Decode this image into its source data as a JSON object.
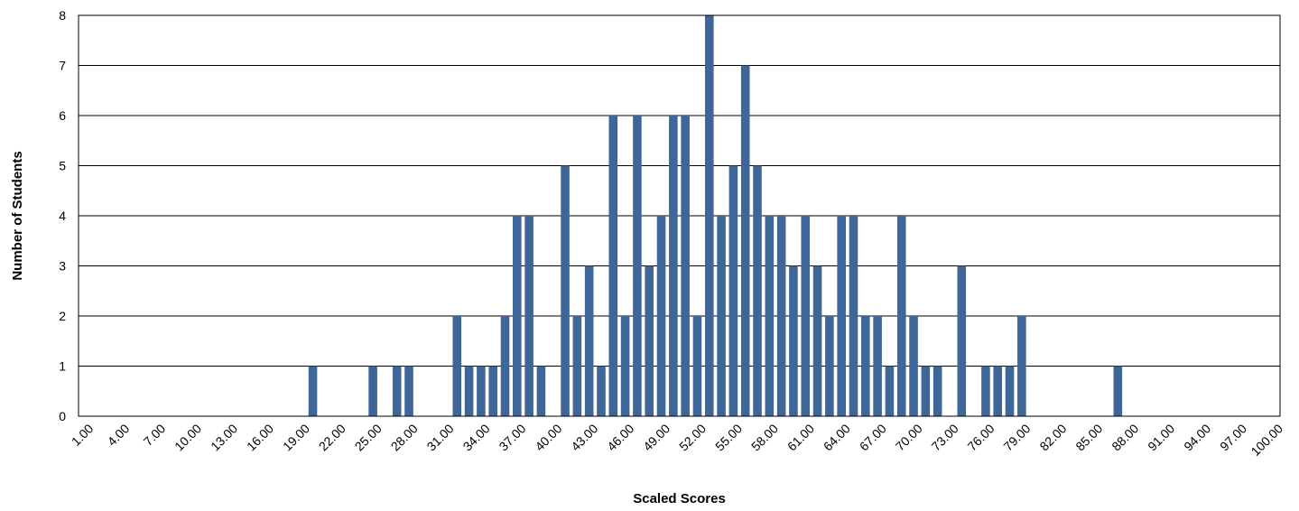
{
  "chart_data": {
    "type": "bar",
    "title": "",
    "xlabel": "Scaled Scores",
    "ylabel": "Number of Students",
    "ylim": [
      0,
      8
    ],
    "yticks": [
      "0",
      "1",
      "2",
      "3",
      "4",
      "5",
      "6",
      "7",
      "8"
    ],
    "xtick_labels": [
      "1.00",
      "4.00",
      "7.00",
      "10.00",
      "13.00",
      "16.00",
      "19.00",
      "22.00",
      "25.00",
      "28.00",
      "31.00",
      "34.00",
      "37.00",
      "40.00",
      "43.00",
      "46.00",
      "49.00",
      "52.00",
      "55.00",
      "58.00",
      "61.00",
      "64.00",
      "67.00",
      "70.00",
      "73.00",
      "76.00",
      "79.00",
      "82.00",
      "85.00",
      "88.00",
      "91.00",
      "94.00",
      "97.00",
      "100.00"
    ],
    "x": [
      1,
      2,
      3,
      4,
      5,
      6,
      7,
      8,
      9,
      10,
      11,
      12,
      13,
      14,
      15,
      16,
      17,
      18,
      19,
      20,
      21,
      22,
      23,
      24,
      25,
      26,
      27,
      28,
      29,
      30,
      31,
      32,
      33,
      34,
      35,
      36,
      37,
      38,
      39,
      40,
      41,
      42,
      43,
      44,
      45,
      46,
      47,
      48,
      49,
      50,
      51,
      52,
      53,
      54,
      55,
      56,
      57,
      58,
      59,
      60,
      61,
      62,
      63,
      64,
      65,
      66,
      67,
      68,
      69,
      70,
      71,
      72,
      73,
      74,
      75,
      76,
      77,
      78,
      79,
      80,
      81,
      82,
      83,
      84,
      85,
      86,
      87,
      88,
      89,
      90,
      91,
      92,
      93,
      94,
      95,
      96,
      97,
      98,
      99,
      100
    ],
    "values": [
      0,
      0,
      0,
      0,
      0,
      0,
      0,
      0,
      0,
      0,
      0,
      0,
      0,
      0,
      0,
      0,
      0,
      0,
      0,
      1,
      0,
      0,
      0,
      0,
      1,
      0,
      1,
      1,
      0,
      0,
      0,
      2,
      1,
      1,
      1,
      2,
      4,
      4,
      1,
      0,
      5,
      2,
      3,
      1,
      6,
      2,
      6,
      3,
      4,
      6,
      6,
      2,
      8,
      4,
      5,
      7,
      5,
      4,
      4,
      3,
      4,
      3,
      2,
      4,
      4,
      2,
      2,
      1,
      4,
      2,
      1,
      1,
      0,
      3,
      0,
      1,
      1,
      1,
      2,
      0,
      0,
      0,
      0,
      0,
      0,
      0,
      1,
      0,
      0,
      0,
      0,
      0,
      0,
      0,
      0,
      0,
      0,
      0,
      0,
      0
    ],
    "bar_color": "#3F6698",
    "grid": true
  }
}
